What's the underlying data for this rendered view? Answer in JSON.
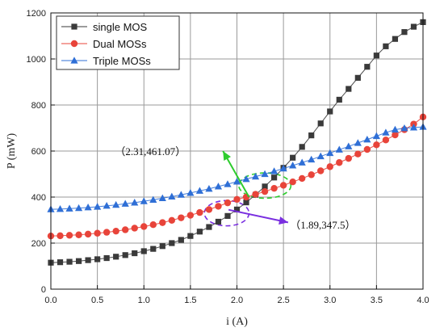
{
  "chart_data": {
    "type": "scatter",
    "title": "",
    "xlabel": "i (A)",
    "ylabel": "P (mW)",
    "xlim": [
      0.0,
      4.0
    ],
    "ylim": [
      0,
      1200
    ],
    "xticks": [
      0.0,
      0.5,
      1.0,
      1.5,
      2.0,
      2.5,
      3.0,
      3.5,
      4.0
    ],
    "xtick_labels": [
      "0.0",
      "0.5",
      "1.0",
      "1.5",
      "2.0",
      "2.5",
      "3.0",
      "3.5",
      "4.0"
    ],
    "yticks": [
      0,
      200,
      400,
      600,
      800,
      1000,
      1200
    ],
    "ytick_labels": [
      "0",
      "200",
      "400",
      "600",
      "800",
      "1000",
      "1200"
    ],
    "grid": true,
    "legend_position": "top-left",
    "series": [
      {
        "name": "single MOS",
        "marker": "square",
        "color": "#3a3a3a",
        "x": [
          0.0,
          0.1,
          0.2,
          0.3,
          0.4,
          0.5,
          0.6,
          0.7,
          0.8,
          0.9,
          1.0,
          1.1,
          1.2,
          1.3,
          1.4,
          1.5,
          1.6,
          1.7,
          1.8,
          1.9,
          2.0,
          2.1,
          2.2,
          2.3,
          2.4,
          2.5,
          2.6,
          2.7,
          2.8,
          2.9,
          3.0,
          3.1,
          3.2,
          3.3,
          3.4,
          3.5,
          3.6,
          3.7,
          3.8,
          3.9,
          4.0
        ],
        "y": [
          115,
          117,
          119,
          122,
          126,
          130,
          135,
          141,
          148,
          156,
          165,
          175,
          187,
          200,
          214,
          231,
          250,
          270,
          293,
          318,
          346,
          377,
          410,
          446,
          485,
          527,
          571,
          618,
          668,
          720,
          772,
          823,
          870,
          918,
          966,
          1015,
          1055,
          1087,
          1117,
          1140,
          1160
        ]
      },
      {
        "name": "Dual MOSs",
        "marker": "circle",
        "color": "#e8443a",
        "x": [
          0.0,
          0.1,
          0.2,
          0.3,
          0.4,
          0.5,
          0.6,
          0.7,
          0.8,
          0.9,
          1.0,
          1.1,
          1.2,
          1.3,
          1.4,
          1.5,
          1.6,
          1.7,
          1.8,
          1.9,
          2.0,
          2.1,
          2.2,
          2.3,
          2.4,
          2.5,
          2.6,
          2.7,
          2.8,
          2.9,
          3.0,
          3.1,
          3.2,
          3.3,
          3.4,
          3.5,
          3.6,
          3.7,
          3.8,
          3.9,
          4.0
        ],
        "y": [
          231,
          232,
          234,
          236,
          239,
          243,
          247,
          252,
          258,
          265,
          272,
          280,
          289,
          299,
          310,
          321,
          333,
          346,
          360,
          375,
          390,
          400,
          412,
          424,
          438,
          451,
          466,
          481,
          497,
          514,
          532,
          550,
          568,
          587,
          607,
          627,
          648,
          670,
          693,
          717,
          748
        ]
      },
      {
        "name": "Triple MOSs",
        "marker": "triangle",
        "color": "#2f6fd6",
        "x": [
          0.0,
          0.1,
          0.2,
          0.3,
          0.4,
          0.5,
          0.6,
          0.7,
          0.8,
          0.9,
          1.0,
          1.1,
          1.2,
          1.3,
          1.4,
          1.5,
          1.6,
          1.7,
          1.8,
          1.9,
          2.0,
          2.1,
          2.2,
          2.3,
          2.4,
          2.5,
          2.6,
          2.7,
          2.8,
          2.9,
          3.0,
          3.1,
          3.2,
          3.3,
          3.4,
          3.5,
          3.6,
          3.7,
          3.8,
          3.9,
          4.0
        ],
        "y": [
          347,
          348,
          350,
          352,
          355,
          358,
          362,
          366,
          371,
          376,
          382,
          388,
          395,
          402,
          410,
          418,
          427,
          436,
          446,
          456,
          467,
          478,
          489,
          500,
          512,
          524,
          537,
          550,
          563,
          577,
          591,
          606,
          620,
          635,
          650,
          665,
          680,
          693,
          699,
          702,
          705
        ]
      }
    ],
    "annotations": [
      {
        "id": "green",
        "text": "（2.31,461.07）",
        "color": "#2ecc2e",
        "point": [
          2.31,
          461.07
        ],
        "ellipse_center": [
          2.3,
          450
        ],
        "ellipse_rx": 0.28,
        "ellipse_ry": 55,
        "arrow_from": [
          2.13,
          400
        ],
        "arrow_to": [
          1.85,
          600
        ],
        "text_anchor_at": [
          1.45,
          600
        ]
      },
      {
        "id": "purple",
        "text": "（1.89,347.5）",
        "color": "#7a2fe0",
        "point": [
          1.89,
          347.5
        ],
        "ellipse_center": [
          1.89,
          330
        ],
        "ellipse_rx": 0.24,
        "ellipse_ry": 55,
        "arrow_from": [
          1.91,
          345
        ],
        "arrow_to": [
          2.55,
          290
        ],
        "text_anchor_at": [
          2.57,
          280
        ]
      }
    ]
  }
}
